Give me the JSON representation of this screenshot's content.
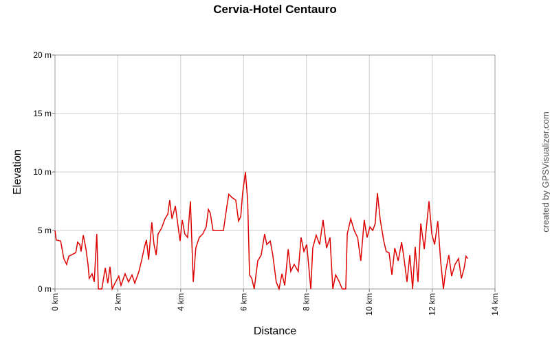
{
  "chart_data": {
    "type": "line",
    "title": "Cervia-Hotel Centauro",
    "x_label": "Distance",
    "y_label": "Elevation",
    "credit": "created by GPSVisualizer.com",
    "color": "#dd0000",
    "grid": true,
    "xlim": [
      0,
      14
    ],
    "ylim": [
      0,
      20
    ],
    "xticks": [
      {
        "value": 0,
        "label": "0 km"
      },
      {
        "value": 2,
        "label": "2 km"
      },
      {
        "value": 4,
        "label": "4 km"
      },
      {
        "value": 6,
        "label": "6 km"
      },
      {
        "value": 8,
        "label": "8 km"
      },
      {
        "value": 10,
        "label": "10 km"
      },
      {
        "value": 12,
        "label": "12 km"
      },
      {
        "value": 14,
        "label": "14 km"
      }
    ],
    "yticks": [
      {
        "value": 0,
        "label": "0 m"
      },
      {
        "value": 5,
        "label": "5 m"
      },
      {
        "value": 10,
        "label": "10 m"
      },
      {
        "value": 15,
        "label": "15 m"
      },
      {
        "value": 20,
        "label": "20 m"
      }
    ],
    "x": [
      0,
      0.04,
      0.18,
      0.28,
      0.37,
      0.44,
      0.66,
      0.72,
      0.79,
      0.83,
      0.9,
      0.98,
      1.05,
      1.09,
      1.18,
      1.25,
      1.33,
      1.38,
      1.49,
      1.6,
      1.68,
      1.75,
      1.82,
      1.93,
      2.03,
      2.1,
      2.23,
      2.34,
      2.45,
      2.54,
      2.67,
      2.76,
      2.84,
      2.91,
      2.98,
      3.08,
      3.15,
      3.22,
      3.28,
      3.39,
      3.5,
      3.59,
      3.65,
      3.72,
      3.83,
      3.89,
      3.98,
      4.05,
      4.13,
      4.22,
      4.31,
      4.4,
      4.48,
      4.59,
      4.7,
      4.81,
      4.88,
      4.94,
      5.03,
      5.25,
      5.36,
      5.47,
      5.53,
      5.64,
      5.75,
      5.84,
      5.91,
      5.97,
      6.06,
      6.13,
      6.19,
      6.26,
      6.34,
      6.45,
      6.56,
      6.67,
      6.74,
      6.85,
      6.93,
      7.04,
      7.13,
      7.22,
      7.31,
      7.42,
      7.5,
      7.61,
      7.74,
      7.83,
      7.92,
      8.01,
      8.14,
      8.2,
      8.31,
      8.42,
      8.53,
      8.64,
      8.75,
      8.84,
      8.93,
      9.03,
      9.14,
      9.25,
      9.3,
      9.41,
      9.52,
      9.63,
      9.73,
      9.84,
      9.93,
      10.02,
      10.11,
      10.19,
      10.26,
      10.35,
      10.46,
      10.54,
      10.63,
      10.72,
      10.81,
      10.92,
      11.03,
      11.11,
      11.2,
      11.29,
      11.38,
      11.46,
      11.55,
      11.64,
      11.75,
      11.84,
      11.9,
      11.99,
      12.08,
      12.18,
      12.27,
      12.36,
      12.43,
      12.53,
      12.62,
      12.73,
      12.84,
      12.93,
      13.02,
      13.08,
      13.13
    ],
    "values": [
      5.0,
      4.2,
      4.1,
      2.6,
      2.1,
      2.8,
      3.1,
      4.0,
      3.8,
      3.2,
      4.6,
      3.5,
      2.1,
      0.9,
      1.3,
      0.6,
      4.7,
      0,
      0,
      1.8,
      0.5,
      1.9,
      0,
      0.6,
      1.1,
      0.3,
      1.3,
      0.6,
      1.2,
      0.5,
      1.5,
      2.5,
      3.5,
      4.2,
      2.5,
      5.7,
      3.8,
      2.9,
      4.7,
      5.2,
      6.0,
      6.4,
      7.6,
      6.0,
      7.1,
      5.9,
      4.1,
      5.9,
      4.7,
      4.4,
      7.5,
      0.6,
      3.5,
      4.4,
      4.7,
      5.3,
      6.8,
      6.5,
      5.0,
      5.0,
      5.0,
      7.1,
      8.1,
      7.8,
      7.6,
      5.8,
      6.2,
      8.2,
      10.0,
      7.6,
      1.2,
      0.9,
      0,
      2.4,
      2.9,
      4.7,
      3.8,
      4.1,
      2.9,
      0.6,
      0,
      1.3,
      0.3,
      3.4,
      1.5,
      2.1,
      1.5,
      4.4,
      3.2,
      3.8,
      0,
      3.5,
      4.6,
      3.8,
      5.9,
      3.5,
      4.4,
      0,
      1.2,
      0.7,
      0,
      0,
      4.7,
      6.0,
      5.0,
      4.4,
      2.4,
      5.9,
      4.4,
      5.3,
      5.0,
      5.6,
      8.2,
      5.9,
      4.1,
      3.2,
      3.1,
      1.2,
      3.5,
      2.4,
      4.0,
      2.5,
      0.6,
      2.9,
      0,
      3.6,
      0.6,
      5.6,
      3.4,
      5.9,
      7.5,
      4.7,
      3.8,
      5.8,
      2.4,
      0,
      1.5,
      2.9,
      1.1,
      2.1,
      2.6,
      0.9,
      1.8,
      2.8,
      2.6
    ]
  }
}
